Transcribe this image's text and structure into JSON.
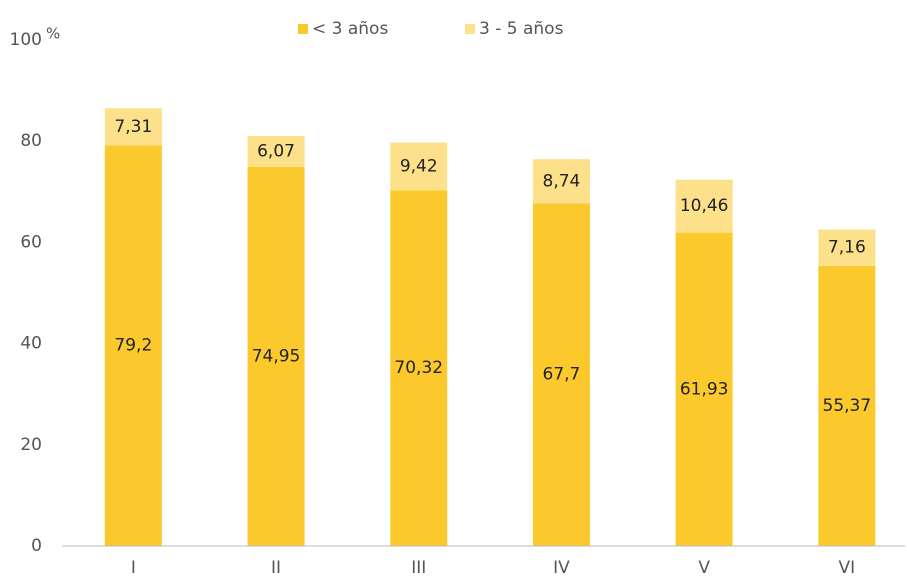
{
  "chart_data": {
    "type": "stacked_bar",
    "y_label": "%",
    "categories": [
      "I",
      "II",
      "III",
      "IV",
      "V",
      "VI"
    ],
    "series": [
      {
        "name": "< 3 años",
        "color": "#fcc92d",
        "values": [
          79.2,
          74.95,
          70.32,
          67.7,
          61.93,
          55.37
        ],
        "value_labels": [
          "79,2",
          "74,95",
          "70,32",
          "67,7",
          "61,93",
          "55,37"
        ]
      },
      {
        "name": "3 - 5 años",
        "color": "#fde08a",
        "values": [
          7.31,
          6.07,
          9.42,
          8.74,
          10.46,
          7.16
        ],
        "value_labels": [
          "7,31",
          "6,07",
          "9,42",
          "8,74",
          "10,46",
          "7,16"
        ]
      }
    ],
    "ylim": [
      0,
      100
    ],
    "yticks": [
      0,
      20,
      40,
      60,
      80,
      100
    ],
    "grid": false,
    "legend": "top"
  }
}
